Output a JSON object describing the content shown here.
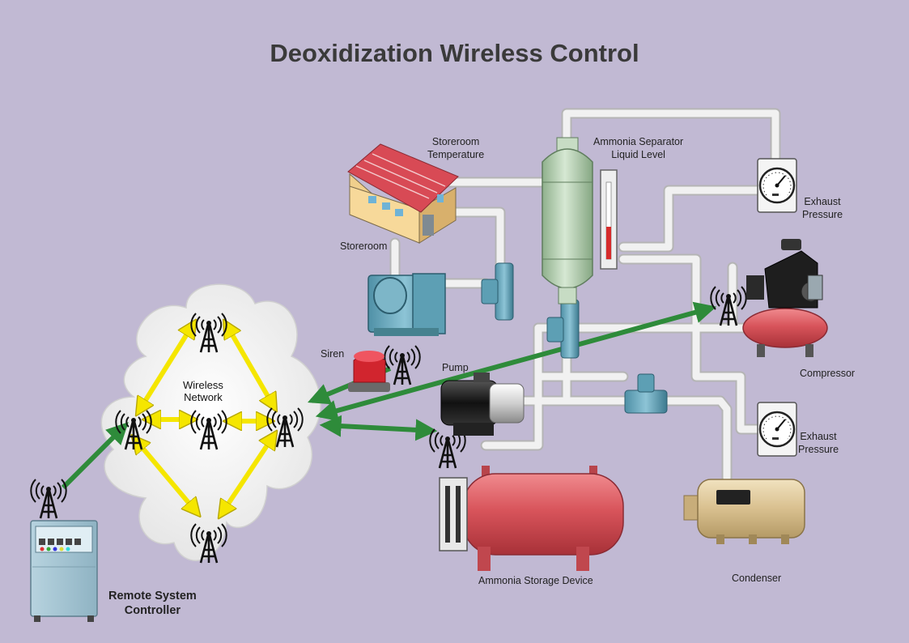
{
  "title": "Deoxidization Wireless Control",
  "labels": {
    "storeroom_temperature": [
      "Storeroom",
      "Temperature"
    ],
    "ammonia_separator": [
      "Ammonia Separator",
      "Liquid Level"
    ],
    "exhaust_pressure_top": [
      "Exhaust",
      "Pressure"
    ],
    "storeroom": "Storeroom",
    "siren": "Siren",
    "pump": "Pump",
    "compressor": "Compressor",
    "exhaust_pressure_bottom": [
      "Exhaust",
      "Pressure"
    ],
    "wireless_network": [
      "Wireless",
      "Network"
    ],
    "ammonia_storage": "Ammonia Storage Device",
    "condenser": "Condenser",
    "remote_controller": [
      "Remote System",
      "Controller"
    ]
  },
  "colors": {
    "background": "#c1b9d3",
    "pipe": "#eeeeee",
    "link_green": "#2e8b3a",
    "mesh_yellow": "#f5e600",
    "tank_red": "#d9565c",
    "separator_green": "#b3cfb0",
    "condenser_tan": "#dcc59a",
    "cloud": "#f2f2f2"
  },
  "icons": {
    "antenna": "radio-tower-icon",
    "gauge": "pressure-gauge-icon"
  }
}
